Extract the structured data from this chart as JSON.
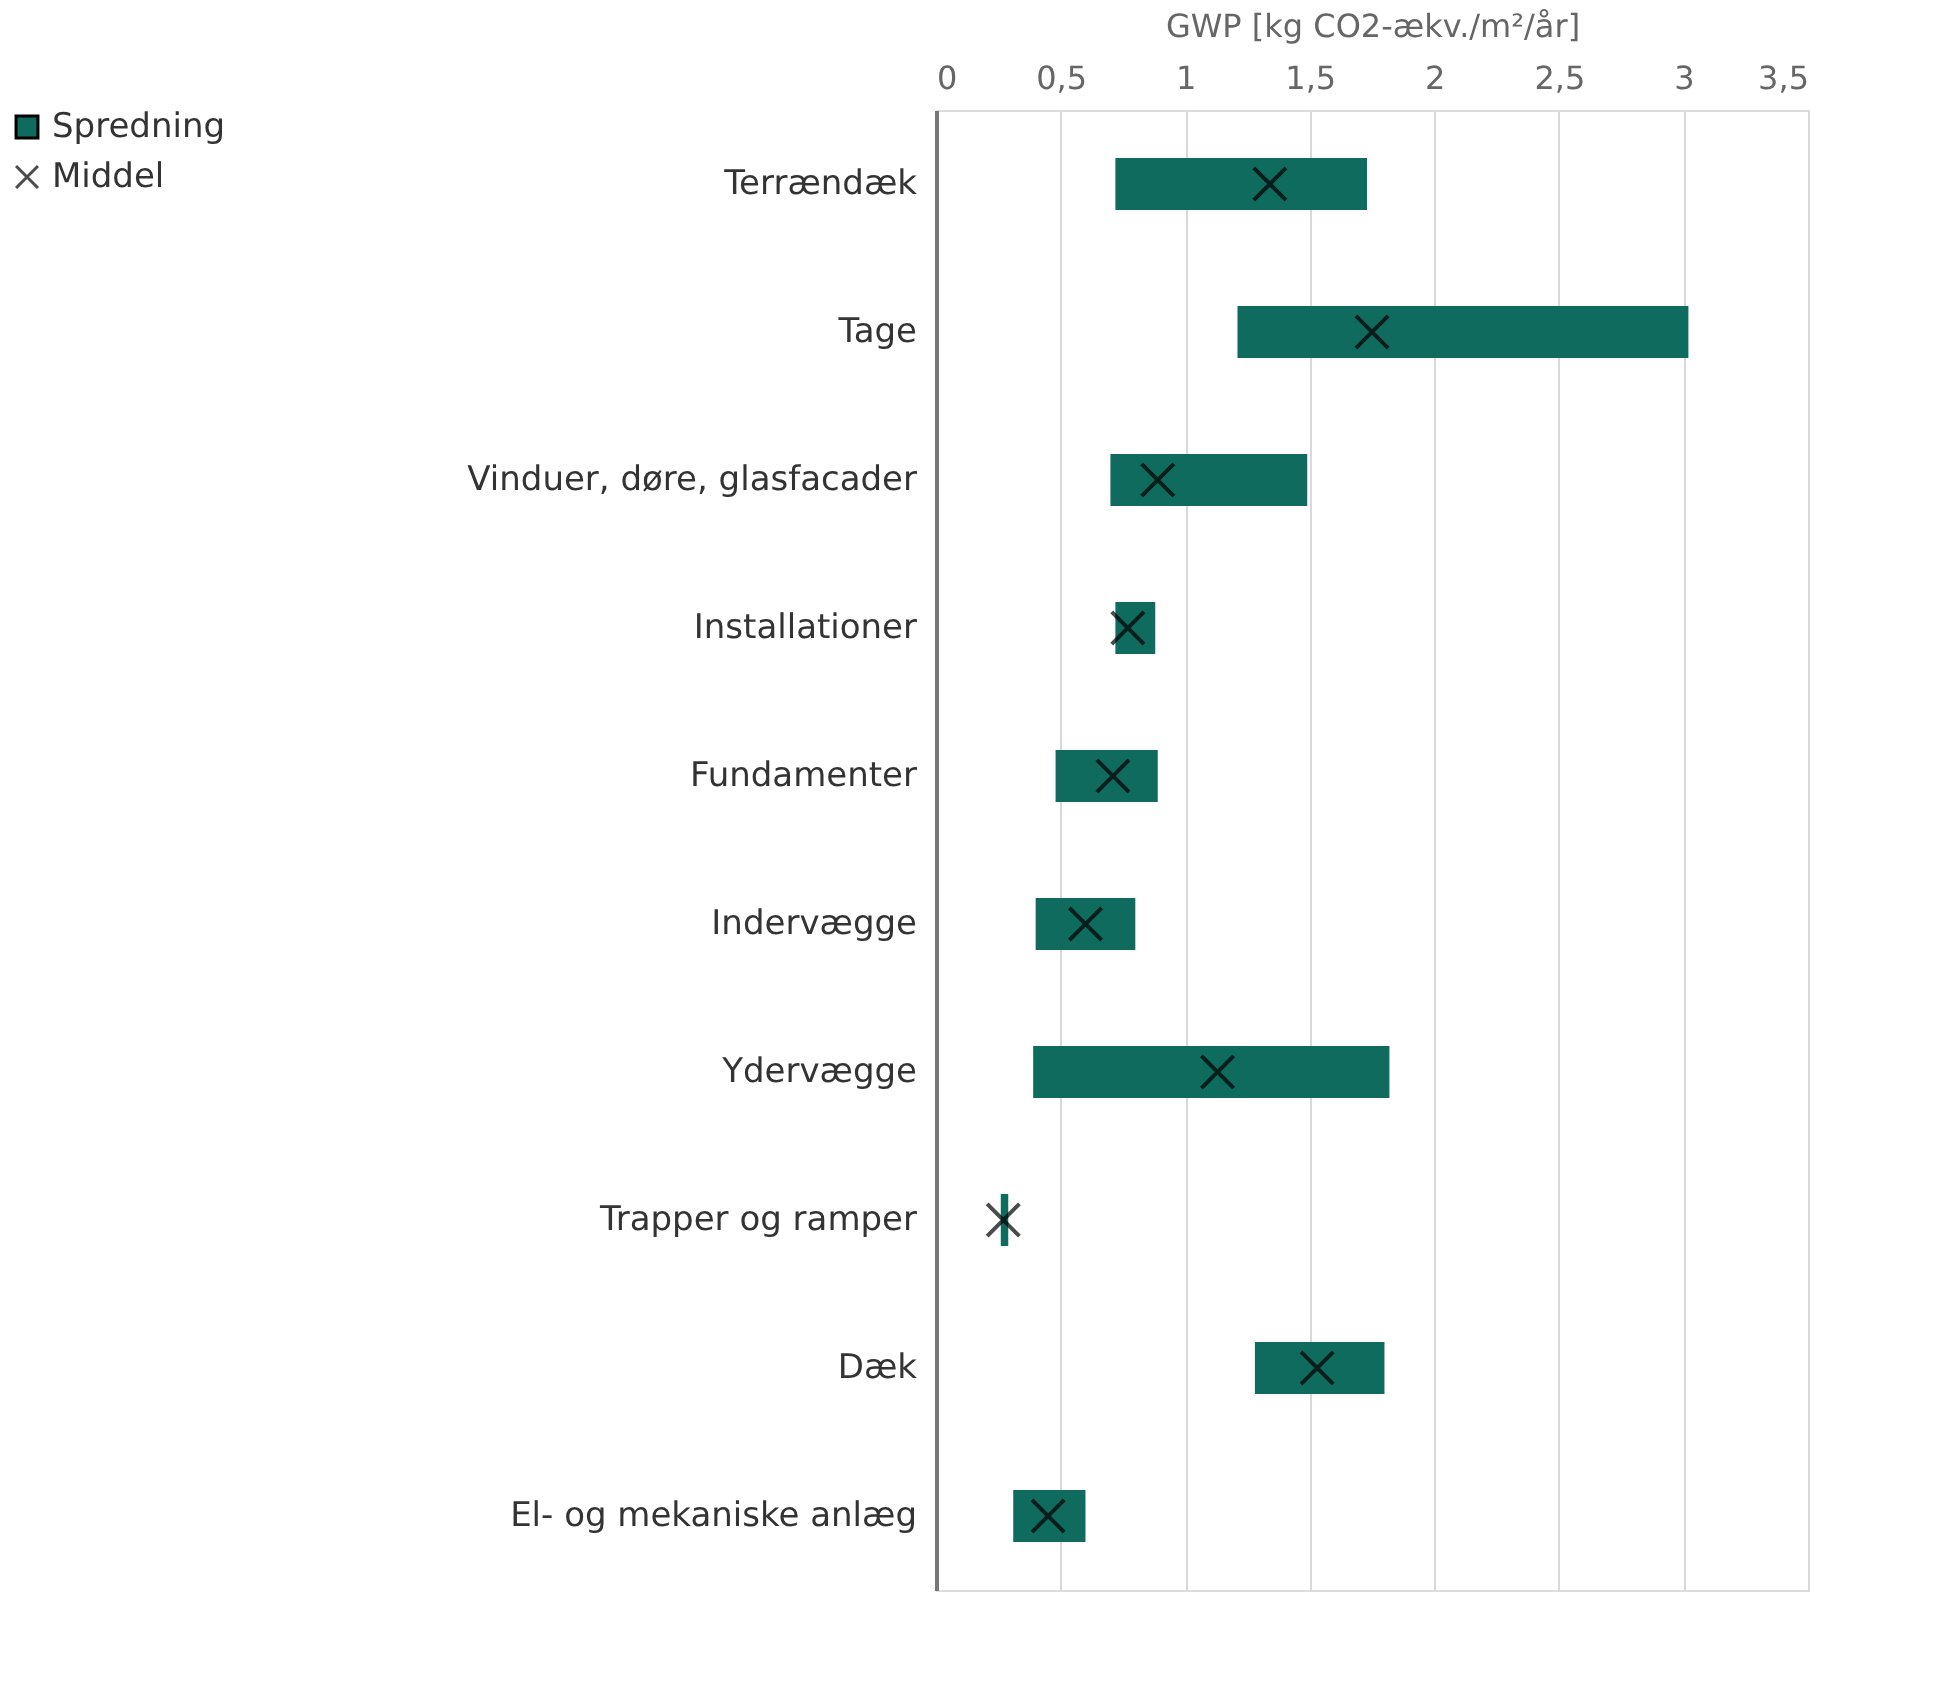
{
  "chart_data": {
    "type": "bar",
    "orientation": "horizontal",
    "xlabel": "GWP [kg CO2-ækv./m²/år]",
    "categories": [
      "Terrændæk",
      "Tage",
      "Vinduer, døre, glasfacader",
      "Installationer",
      "Fundamenter",
      "Indervægge",
      "Ydervægge",
      "Trapper og ramper",
      "Dæk",
      "El- og mekaniske anlæg"
    ],
    "series": [
      {
        "name": "Spredning",
        "color": "#0f6b5e",
        "base": [
          0.72,
          1.21,
          0.7,
          0.72,
          0.48,
          0.4,
          0.39,
          0.26,
          1.28,
          0.31
        ],
        "values": [
          1.01,
          1.81,
          0.79,
          0.16,
          0.41,
          0.4,
          1.43,
          0.03,
          0.52,
          0.29
        ]
      },
      {
        "name": "Middel",
        "type": "scatter",
        "marker": "cross",
        "color": "#000000",
        "values": [
          1.34,
          1.75,
          0.89,
          0.77,
          0.71,
          0.6,
          1.13,
          0.27,
          1.53,
          0.45
        ]
      }
    ],
    "xlim": [
      0,
      3.5
    ],
    "xticks": [
      0,
      {
        "value": 0.5,
        "label": "0,5"
      },
      1,
      {
        "value": 1.5,
        "label": "1,5"
      },
      2,
      {
        "value": 2.5,
        "label": "2,5"
      },
      3,
      {
        "value": 3.5,
        "label": "3,5"
      }
    ],
    "grid": "x",
    "legend": "top left"
  }
}
